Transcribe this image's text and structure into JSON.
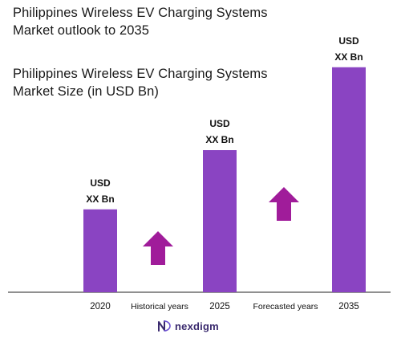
{
  "outlook_title": "Philippines Wireless EV Charging Systems\nMarket outlook to 2035",
  "chart_data": {
    "type": "bar",
    "title": "Philippines Wireless EV Charging Systems\nMarket Size (in USD Bn)",
    "categories": [
      "2020",
      "2025",
      "2035"
    ],
    "values": [
      0.7,
      1.2,
      1.9
    ],
    "value_labels": [
      "USD\nXX Bn",
      "USD\nXX Bn",
      "USD\nXX Bn"
    ],
    "period_labels": [
      "Historical years",
      "Forecasted years"
    ],
    "ylim": [
      0,
      2.0
    ],
    "grid": false,
    "legend": "none",
    "bar_color": "#8a44c2",
    "arrow_color": "#a01c9a"
  },
  "logo": {
    "text": "nexdigm",
    "icon": "nexdigm-logo-icon",
    "color": "#3a2a6e"
  }
}
